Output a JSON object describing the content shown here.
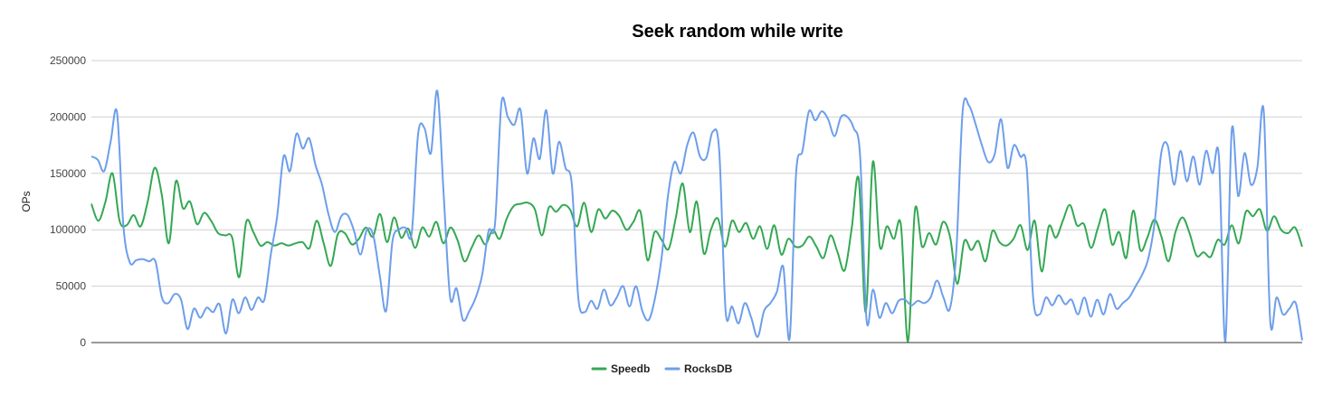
{
  "chart_data": {
    "type": "line",
    "title": "Seek random while write",
    "ylabel": "OPs",
    "xlabel": "",
    "ylim": [
      0,
      250000
    ],
    "yticks": [
      0,
      50000,
      100000,
      150000,
      200000,
      250000
    ],
    "grid": true,
    "legend_position": "bottom",
    "series": [
      {
        "name": "Speedb",
        "color": "#34a853",
        "values": [
          123000,
          108000,
          125000,
          150000,
          108000,
          104000,
          113000,
          103000,
          125000,
          155000,
          131000,
          88000,
          143000,
          119000,
          125000,
          105000,
          115000,
          108000,
          97000,
          95000,
          93000,
          58000,
          107000,
          98000,
          86000,
          89000,
          86000,
          88000,
          86000,
          88000,
          89000,
          84000,
          108000,
          88000,
          68000,
          96000,
          97000,
          87000,
          92000,
          102000,
          94000,
          114000,
          89000,
          111000,
          93000,
          101000,
          84000,
          102000,
          94000,
          107000,
          88000,
          102000,
          91000,
          72000,
          84000,
          95000,
          87000,
          100000,
          92000,
          110000,
          121000,
          123000,
          124000,
          118000,
          95000,
          120000,
          116000,
          122000,
          118000,
          103000,
          124000,
          98000,
          118000,
          110000,
          117000,
          112000,
          100000,
          107000,
          116000,
          73000,
          98000,
          91000,
          83000,
          110000,
          141000,
          98000,
          125000,
          79000,
          100000,
          110000,
          85000,
          108000,
          98000,
          106000,
          92000,
          103000,
          83000,
          104000,
          78000,
          92000,
          85000,
          86000,
          94000,
          85000,
          75000,
          95000,
          80000,
          64000,
          101000,
          145000,
          27000,
          160000,
          85000,
          103000,
          92000,
          104000,
          1000,
          118000,
          85000,
          97000,
          87000,
          107000,
          93000,
          52000,
          90000,
          82000,
          90000,
          72000,
          99000,
          89000,
          86000,
          92000,
          104000,
          82000,
          108000,
          63000,
          103000,
          93000,
          108000,
          122000,
          104000,
          105000,
          84000,
          102000,
          118000,
          87000,
          98000,
          75000,
          117000,
          82000,
          93000,
          109000,
          94000,
          72000,
          98000,
          111000,
          97000,
          77000,
          80000,
          76000,
          91000,
          87000,
          104000,
          88000,
          116000,
          112000,
          118000,
          99000,
          112000,
          100000,
          97000,
          102000,
          85000
        ]
      },
      {
        "name": "RocksDB",
        "color": "#6d9eeb",
        "values": [
          165000,
          162000,
          152000,
          178000,
          204000,
          103000,
          71000,
          73000,
          74000,
          72000,
          72000,
          40000,
          35000,
          43000,
          38000,
          12000,
          30000,
          22000,
          31000,
          27000,
          34000,
          8000,
          38000,
          26000,
          40000,
          29000,
          40000,
          38000,
          78000,
          112000,
          165000,
          152000,
          185000,
          172000,
          181000,
          157000,
          140000,
          114000,
          98000,
          112000,
          113000,
          99000,
          78000,
          100000,
          95000,
          60000,
          28000,
          90000,
          100000,
          102000,
          97000,
          185000,
          190000,
          168000,
          223000,
          130000,
          40000,
          48000,
          20000,
          28000,
          40000,
          60000,
          99000,
          105000,
          212000,
          200000,
          193000,
          206000,
          150000,
          181000,
          163000,
          206000,
          150000,
          178000,
          155000,
          140000,
          40000,
          27000,
          37000,
          30000,
          47000,
          33000,
          40000,
          50000,
          32000,
          50000,
          28000,
          20000,
          40000,
          75000,
          130000,
          160000,
          150000,
          175000,
          186000,
          165000,
          164000,
          187000,
          170000,
          28000,
          32000,
          17000,
          35000,
          22000,
          5000,
          28000,
          35000,
          45000,
          67000,
          4000,
          150000,
          170000,
          205000,
          197000,
          205000,
          198000,
          183000,
          200000,
          200000,
          190000,
          165000,
          20000,
          47000,
          22000,
          35000,
          26000,
          37000,
          38000,
          33000,
          37000,
          35000,
          40000,
          55000,
          40000,
          30000,
          80000,
          205000,
          210000,
          194000,
          175000,
          160000,
          167000,
          198000,
          155000,
          175000,
          165000,
          155000,
          40000,
          25000,
          40000,
          33000,
          42000,
          34000,
          38000,
          25000,
          40000,
          23000,
          38000,
          25000,
          43000,
          30000,
          35000,
          40000,
          50000,
          60000,
          75000,
          108000,
          168000,
          175000,
          140000,
          170000,
          143000,
          165000,
          140000,
          170000,
          150000,
          165000,
          1000,
          188000,
          130000,
          168000,
          140000,
          155000,
          205000,
          20000,
          40000,
          25000,
          30000,
          35000,
          2000
        ]
      }
    ]
  }
}
